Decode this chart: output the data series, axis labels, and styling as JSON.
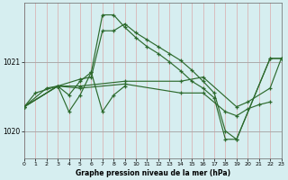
{
  "title": "Graphe pression niveau de la mer (hPa)",
  "bg_color": "#d6eef0",
  "line_color": "#2d6a2d",
  "grid_color_v": "#daaaaa",
  "grid_color_h": "#aaaaaa",
  "xlim": [
    0,
    23
  ],
  "ylim": [
    1019.6,
    1021.85
  ],
  "ytick_vals": [
    1020,
    1021
  ],
  "xticks": [
    0,
    1,
    2,
    3,
    4,
    5,
    6,
    7,
    8,
    9,
    10,
    11,
    12,
    13,
    14,
    15,
    16,
    17,
    18,
    19,
    20,
    21,
    22,
    23
  ],
  "series": [
    {
      "x": [
        0,
        1,
        3,
        4,
        5,
        6,
        7,
        8,
        9,
        10,
        11,
        12,
        13,
        14,
        15,
        16,
        17,
        18,
        19,
        22,
        23
      ],
      "y": [
        1020.35,
        1020.55,
        1020.65,
        1020.52,
        1020.72,
        1020.85,
        1021.68,
        1021.68,
        1021.5,
        1021.35,
        1021.22,
        1021.12,
        1021.0,
        1020.87,
        1020.72,
        1020.62,
        1020.48,
        1019.88,
        1019.88,
        1021.05,
        1021.05
      ]
    },
    {
      "x": [
        0,
        2,
        3,
        5,
        6,
        7,
        8,
        9,
        10,
        11,
        12,
        13,
        14,
        15,
        16,
        17,
        18,
        19,
        22,
        23
      ],
      "y": [
        1020.35,
        1020.62,
        1020.65,
        1020.75,
        1020.78,
        1021.45,
        1021.45,
        1021.55,
        1021.42,
        1021.32,
        1021.22,
        1021.12,
        1021.02,
        1020.88,
        1020.72,
        1020.55,
        1020.0,
        1019.88,
        1021.05,
        1021.05
      ]
    },
    {
      "x": [
        0,
        3,
        5,
        9,
        14,
        16,
        19,
        20,
        22,
        23
      ],
      "y": [
        1020.35,
        1020.65,
        1020.65,
        1020.72,
        1020.72,
        1020.78,
        1020.35,
        1020.42,
        1020.62,
        1021.05
      ]
    },
    {
      "x": [
        0,
        3,
        5,
        9,
        14,
        16,
        18,
        19,
        20,
        21,
        22
      ],
      "y": [
        1020.35,
        1020.65,
        1020.62,
        1020.68,
        1020.55,
        1020.55,
        1020.28,
        1020.22,
        1020.32,
        1020.38,
        1020.42
      ]
    },
    {
      "x": [
        0,
        3,
        4,
        5,
        6,
        7,
        8,
        9
      ],
      "y": [
        1020.35,
        1020.65,
        1020.28,
        1020.52,
        1020.85,
        1020.28,
        1020.52,
        1020.65
      ]
    }
  ]
}
